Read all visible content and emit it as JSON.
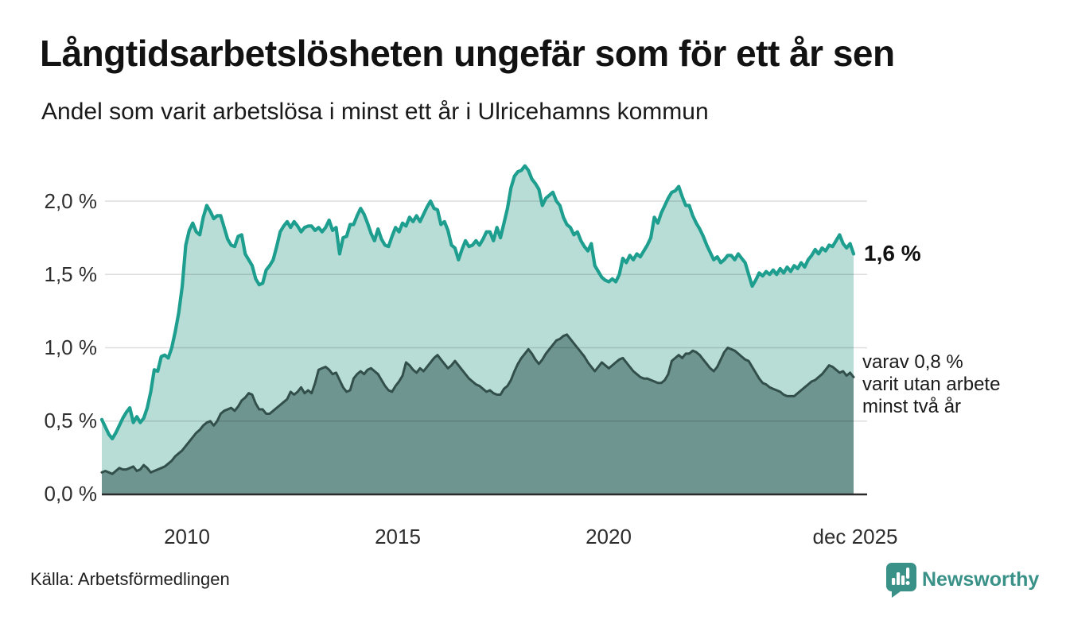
{
  "header": {
    "title": "Långtidsarbetslösheten ungefär som för ett år sen",
    "subtitle": "Andel som varit arbetslösa i minst ett år i Ulricehamns kommun"
  },
  "chart_data": {
    "type": "area",
    "title": "Långtidsarbetslösheten ungefär som för ett år sen",
    "subtitle": "Andel som varit arbetslösa i minst ett år i Ulricehamns kommun",
    "x_unit": "month",
    "x_range": [
      "2008-01",
      "2025-12"
    ],
    "x_ticks": [
      "2010",
      "2015",
      "2020",
      "dec 2025"
    ],
    "y_ticks": [
      "2,0 %",
      "1,5 %",
      "1,0 %",
      "0,5 %",
      "0,0 %"
    ],
    "y_tick_values": [
      2.0,
      1.5,
      1.0,
      0.5,
      0.0
    ],
    "ylim": [
      0,
      2.35
    ],
    "grid": "horizontal",
    "legend_position": "none",
    "series": [
      {
        "name": "Andel arbetslösa minst ett år",
        "line_color": "#1d9e8e",
        "fill_color": "#b8ddd6",
        "end_label": "1,6 %",
        "values": [
          0.51,
          0.46,
          0.41,
          0.38,
          0.42,
          0.47,
          0.52,
          0.56,
          0.59,
          0.49,
          0.53,
          0.49,
          0.52,
          0.59,
          0.7,
          0.85,
          0.84,
          0.94,
          0.95,
          0.93,
          1.0,
          1.11,
          1.24,
          1.42,
          1.7,
          1.8,
          1.85,
          1.79,
          1.77,
          1.89,
          1.97,
          1.93,
          1.88,
          1.9,
          1.9,
          1.82,
          1.74,
          1.7,
          1.69,
          1.76,
          1.77,
          1.64,
          1.6,
          1.56,
          1.47,
          1.43,
          1.44,
          1.53,
          1.56,
          1.6,
          1.69,
          1.79,
          1.83,
          1.86,
          1.82,
          1.86,
          1.83,
          1.79,
          1.82,
          1.83,
          1.83,
          1.8,
          1.82,
          1.79,
          1.82,
          1.87,
          1.8,
          1.82,
          1.64,
          1.75,
          1.76,
          1.84,
          1.84,
          1.9,
          1.95,
          1.91,
          1.85,
          1.78,
          1.73,
          1.81,
          1.74,
          1.7,
          1.69,
          1.76,
          1.82,
          1.79,
          1.85,
          1.83,
          1.89,
          1.86,
          1.9,
          1.86,
          1.91,
          1.96,
          2.0,
          1.95,
          1.94,
          1.84,
          1.86,
          1.8,
          1.7,
          1.68,
          1.6,
          1.67,
          1.73,
          1.69,
          1.7,
          1.73,
          1.7,
          1.74,
          1.79,
          1.79,
          1.73,
          1.82,
          1.75,
          1.85,
          1.95,
          2.09,
          2.17,
          2.2,
          2.21,
          2.24,
          2.21,
          2.15,
          2.12,
          2.08,
          1.97,
          2.02,
          2.04,
          2.06,
          2.0,
          1.97,
          1.89,
          1.84,
          1.82,
          1.77,
          1.79,
          1.73,
          1.69,
          1.66,
          1.71,
          1.56,
          1.52,
          1.48,
          1.46,
          1.45,
          1.47,
          1.45,
          1.5,
          1.61,
          1.58,
          1.63,
          1.6,
          1.64,
          1.62,
          1.66,
          1.7,
          1.75,
          1.89,
          1.85,
          1.92,
          1.97,
          2.02,
          2.06,
          2.07,
          2.1,
          2.03,
          1.97,
          1.97,
          1.9,
          1.85,
          1.81,
          1.76,
          1.7,
          1.65,
          1.6,
          1.62,
          1.58,
          1.6,
          1.63,
          1.63,
          1.6,
          1.64,
          1.61,
          1.58,
          1.5,
          1.42,
          1.46,
          1.51,
          1.49,
          1.52,
          1.5,
          1.53,
          1.5,
          1.54,
          1.51,
          1.55,
          1.52,
          1.56,
          1.54,
          1.58,
          1.55,
          1.6,
          1.63,
          1.67,
          1.64,
          1.68,
          1.66,
          1.7,
          1.69,
          1.73,
          1.77,
          1.71,
          1.68,
          1.71,
          1.64
        ]
      },
      {
        "name": "Andel som varit utan arbete minst två år",
        "line_color": "#324f4b",
        "fill_color": "#6e958f",
        "end_label": "varav 0,8 % varit utan arbete minst två år",
        "values": [
          0.15,
          0.16,
          0.15,
          0.14,
          0.16,
          0.18,
          0.17,
          0.17,
          0.18,
          0.19,
          0.16,
          0.17,
          0.2,
          0.18,
          0.15,
          0.16,
          0.17,
          0.18,
          0.19,
          0.21,
          0.23,
          0.26,
          0.28,
          0.3,
          0.33,
          0.36,
          0.39,
          0.42,
          0.44,
          0.47,
          0.49,
          0.5,
          0.47,
          0.5,
          0.55,
          0.57,
          0.58,
          0.59,
          0.57,
          0.6,
          0.64,
          0.66,
          0.69,
          0.68,
          0.62,
          0.58,
          0.58,
          0.55,
          0.55,
          0.57,
          0.59,
          0.61,
          0.63,
          0.65,
          0.7,
          0.68,
          0.7,
          0.73,
          0.69,
          0.71,
          0.69,
          0.76,
          0.85,
          0.86,
          0.87,
          0.85,
          0.82,
          0.83,
          0.78,
          0.73,
          0.7,
          0.71,
          0.79,
          0.82,
          0.84,
          0.82,
          0.85,
          0.86,
          0.84,
          0.82,
          0.78,
          0.74,
          0.71,
          0.7,
          0.74,
          0.77,
          0.81,
          0.9,
          0.88,
          0.85,
          0.83,
          0.86,
          0.84,
          0.87,
          0.9,
          0.93,
          0.95,
          0.92,
          0.89,
          0.86,
          0.88,
          0.91,
          0.88,
          0.85,
          0.82,
          0.79,
          0.77,
          0.75,
          0.74,
          0.72,
          0.7,
          0.71,
          0.69,
          0.68,
          0.68,
          0.72,
          0.74,
          0.78,
          0.84,
          0.89,
          0.93,
          0.96,
          0.99,
          0.96,
          0.92,
          0.89,
          0.92,
          0.96,
          0.99,
          1.02,
          1.05,
          1.06,
          1.08,
          1.09,
          1.06,
          1.03,
          1.0,
          0.97,
          0.94,
          0.9,
          0.87,
          0.84,
          0.87,
          0.9,
          0.88,
          0.86,
          0.88,
          0.9,
          0.92,
          0.93,
          0.9,
          0.87,
          0.84,
          0.82,
          0.8,
          0.79,
          0.79,
          0.78,
          0.77,
          0.76,
          0.76,
          0.78,
          0.82,
          0.91,
          0.93,
          0.95,
          0.93,
          0.96,
          0.96,
          0.98,
          0.97,
          0.95,
          0.92,
          0.89,
          0.86,
          0.84,
          0.87,
          0.92,
          0.97,
          1.0,
          0.99,
          0.98,
          0.96,
          0.94,
          0.92,
          0.91,
          0.87,
          0.83,
          0.79,
          0.76,
          0.75,
          0.73,
          0.72,
          0.71,
          0.7,
          0.68,
          0.67,
          0.67,
          0.67,
          0.69,
          0.71,
          0.73,
          0.75,
          0.77,
          0.78,
          0.8,
          0.82,
          0.85,
          0.88,
          0.87,
          0.85,
          0.83,
          0.84,
          0.81,
          0.83,
          0.8
        ]
      }
    ]
  },
  "annotations": {
    "end_value_primary": "1,6 %",
    "end_note_lines": [
      "varav 0,8 %",
      "varit utan arbete",
      "minst två år"
    ]
  },
  "footer": {
    "source": "Källa: Arbetsförmedlingen",
    "brand": "Newsworthy"
  },
  "colors": {
    "line_primary": "#1d9e8e",
    "fill_primary": "#b8ddd6",
    "line_secondary": "#324f4b",
    "fill_secondary": "#6e958f",
    "gridline": "#dcdcdc",
    "axis": "#333333",
    "brand_teal": "#3a9188",
    "text": "#141414"
  }
}
